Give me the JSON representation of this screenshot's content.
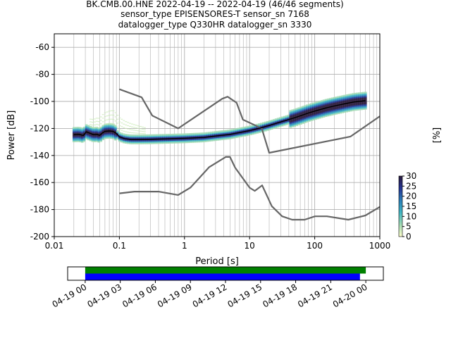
{
  "title": {
    "line1": "BK.CMB.00.HNE   2022-04-19 -- 2022-04-19  (46/46 segments)",
    "line2": "sensor_type EPISENSORES-T sensor_sn 7168",
    "line3": "datalogger_type Q330HR datalogger_sn 3330"
  },
  "chart_data": [
    {
      "type": "heatmap",
      "xlabel": "Period [s]",
      "ylabel": "Power [dB]",
      "x_scale": "log",
      "xlim": [
        0.01,
        1000
      ],
      "ylim": [
        -200,
        -50
      ],
      "x_ticks": [
        "0.01",
        "0.1",
        "1",
        "10",
        "100",
        "1000"
      ],
      "y_ticks": [
        "-60",
        "-80",
        "-100",
        "-120",
        "-140",
        "-160",
        "-180",
        "-200"
      ],
      "grid": true,
      "colorbar": {
        "label": "[%]",
        "ticks": [
          "0",
          "5",
          "10",
          "15",
          "20",
          "25",
          "30"
        ],
        "range": [
          0,
          30
        ],
        "colormap": [
          "#ffffcc",
          "#a1dab4",
          "#41b6c4",
          "#2c7fb8",
          "#253494",
          "#2b1b3c"
        ]
      },
      "noise_model_color": "#666666",
      "mode_color": "#000000",
      "nhnm": [
        [
          0.1,
          -91
        ],
        [
          0.22,
          -97
        ],
        [
          0.32,
          -110.5
        ],
        [
          0.8,
          -120
        ],
        [
          3.8,
          -98
        ],
        [
          4.6,
          -96.5
        ],
        [
          6.3,
          -101
        ],
        [
          7.9,
          -113.5
        ],
        [
          15.4,
          -120
        ],
        [
          20,
          -138
        ],
        [
          354.8,
          -126
        ],
        [
          1000,
          -111
        ]
      ],
      "nlnm": [
        [
          0.1,
          -168
        ],
        [
          0.17,
          -166.7
        ],
        [
          0.4,
          -166.7
        ],
        [
          0.8,
          -169.2
        ],
        [
          1.24,
          -163.7
        ],
        [
          2.4,
          -148.6
        ],
        [
          4.3,
          -141.1
        ],
        [
          5.0,
          -141.1
        ],
        [
          6.0,
          -149
        ],
        [
          10.0,
          -163.8
        ],
        [
          12.0,
          -166.2
        ],
        [
          15.6,
          -162.1
        ],
        [
          21.9,
          -177.5
        ],
        [
          31.6,
          -185
        ],
        [
          45,
          -187.5
        ],
        [
          70,
          -187.5
        ],
        [
          101,
          -185
        ],
        [
          154,
          -185
        ],
        [
          328,
          -187.5
        ],
        [
          600,
          -184.4
        ],
        [
          1000,
          -178
        ]
      ],
      "mode": [
        [
          0.02,
          -124.6
        ],
        [
          0.024,
          -124.4
        ],
        [
          0.028,
          -125.2
        ],
        [
          0.031,
          -122.5
        ],
        [
          0.035,
          -123.5
        ],
        [
          0.04,
          -124.6
        ],
        [
          0.045,
          -124.4
        ],
        [
          0.05,
          -125.1
        ],
        [
          0.055,
          -123.3
        ],
        [
          0.06,
          -122.2
        ],
        [
          0.07,
          -121.9
        ],
        [
          0.08,
          -122.2
        ],
        [
          0.09,
          -123.7
        ],
        [
          0.1,
          -126.2
        ],
        [
          0.12,
          -127.5
        ],
        [
          0.15,
          -128.1
        ],
        [
          0.2,
          -128.1
        ],
        [
          0.3,
          -128.0
        ],
        [
          0.5,
          -127.7
        ],
        [
          1,
          -127.3
        ],
        [
          2,
          -126.6
        ],
        [
          3,
          -125.6
        ],
        [
          5,
          -124.4
        ],
        [
          8,
          -122.5
        ],
        [
          10,
          -121.6
        ],
        [
          15,
          -119.5
        ],
        [
          20,
          -117.8
        ],
        [
          30,
          -115.2
        ],
        [
          50,
          -112.0
        ],
        [
          80,
          -108.6
        ],
        [
          100,
          -107.2
        ],
        [
          150,
          -104.8
        ],
        [
          200,
          -103.4
        ],
        [
          300,
          -101.6
        ],
        [
          400,
          -100.4
        ],
        [
          600,
          -99.5
        ]
      ]
    },
    {
      "type": "timeline",
      "tick_labels": [
        "04-19 00",
        "04-19 03",
        "04-19 06",
        "04-19 09",
        "04-19 12",
        "04-19 15",
        "04-19 18",
        "04-19 21",
        "04-20 00"
      ],
      "range_hours": [
        -1.5,
        25.5
      ],
      "bars": [
        {
          "color": "#008000",
          "start_hours": 0,
          "end_hours": 24.0
        },
        {
          "color": "#0000ff",
          "start_hours": 0,
          "end_hours": 23.5
        }
      ]
    }
  ]
}
